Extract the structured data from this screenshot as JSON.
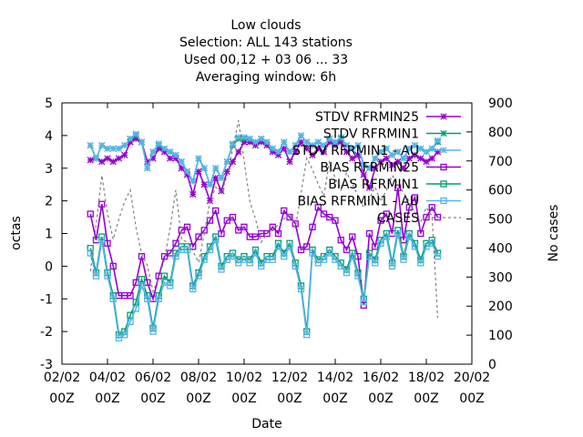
{
  "chart_data": {
    "type": "line",
    "title_lines": [
      "Low clouds",
      "Selection: ALL    143 stations",
      "Used  00,12  + 03 06 ... 33",
      "Averaging window:  6h"
    ],
    "xlabel": "Date",
    "ylabel": "octas",
    "y2label": "No cases",
    "x_ticks": [
      {
        "line1": "02/02",
        "line2": "00Z"
      },
      {
        "line1": "04/02",
        "line2": "00Z"
      },
      {
        "line1": "06/02",
        "line2": "00Z"
      },
      {
        "line1": "08/02",
        "line2": "00Z"
      },
      {
        "line1": "10/02",
        "line2": "00Z"
      },
      {
        "line1": "12/02",
        "line2": "00Z"
      },
      {
        "line1": "14/02",
        "line2": "00Z"
      },
      {
        "line1": "16/02",
        "line2": "00Z"
      },
      {
        "line1": "18/02",
        "line2": "00Z"
      },
      {
        "line1": "20/02",
        "line2": "00Z"
      }
    ],
    "x_unit": "days since 02/02 00Z",
    "xlim": [
      0,
      18
    ],
    "ylim": [
      -3,
      5
    ],
    "y2lim": [
      0,
      900
    ],
    "y_ticks": [
      "-3",
      "-2",
      "-1",
      "0",
      "1",
      "2",
      "3",
      "4",
      "5"
    ],
    "y2_ticks": [
      "0",
      "100",
      "200",
      "300",
      "400",
      "500",
      "600",
      "700",
      "800",
      "900"
    ],
    "grid": false,
    "legend_position": "top-right",
    "x": [
      1.25,
      1.5,
      1.75,
      2.0,
      2.25,
      2.5,
      2.75,
      3.0,
      3.25,
      3.5,
      3.75,
      4.0,
      4.25,
      4.5,
      4.75,
      5.0,
      5.25,
      5.5,
      5.75,
      6.0,
      6.25,
      6.5,
      6.75,
      7.0,
      7.25,
      7.5,
      7.75,
      8.0,
      8.25,
      8.5,
      8.75,
      9.0,
      9.25,
      9.5,
      9.75,
      10.0,
      10.25,
      10.5,
      10.75,
      11.0,
      11.25,
      11.5,
      11.75,
      12.0,
      12.25,
      12.5,
      12.75,
      13.0,
      13.25,
      13.5,
      13.75,
      14.0,
      14.25,
      14.5,
      14.75,
      15.0,
      15.25,
      15.5,
      15.75,
      16.0,
      16.25,
      16.5
    ],
    "series": [
      {
        "name": "STDV RFRMIN25",
        "color": "#9400d3",
        "marker": "star",
        "axis": "y1",
        "dash": false,
        "values": [
          3.25,
          3.3,
          3.2,
          3.3,
          3.2,
          3.3,
          3.4,
          3.8,
          3.9,
          3.8,
          3.2,
          3.3,
          3.6,
          3.5,
          3.3,
          3.3,
          3.0,
          2.8,
          2.2,
          2.9,
          2.5,
          2.0,
          2.7,
          2.3,
          2.9,
          3.2,
          3.5,
          3.8,
          3.8,
          3.7,
          3.8,
          3.7,
          3.5,
          3.4,
          3.6,
          3.2,
          3.5,
          3.8,
          3.6,
          3.4,
          3.6,
          3.5,
          3.8,
          3.7,
          3.8,
          3.5,
          3.3,
          3.4,
          2.8,
          2.4,
          3.0,
          3.2,
          3.3,
          3.1,
          3.2,
          3.0,
          3.3,
          3.4,
          3.3,
          3.2,
          3.3,
          3.5
        ]
      },
      {
        "name": "STDV RFRMIN1",
        "color": "#009e73",
        "marker": "star",
        "axis": "y1",
        "dash": false,
        "values": [
          3.7,
          3.3,
          3.7,
          3.6,
          3.6,
          3.6,
          3.7,
          3.9,
          4.0,
          3.8,
          3.0,
          3.5,
          3.7,
          3.6,
          3.5,
          3.4,
          3.2,
          2.9,
          2.6,
          3.3,
          3.0,
          2.5,
          3.0,
          2.7,
          3.2,
          3.7,
          3.9,
          3.9,
          3.9,
          3.8,
          3.9,
          3.8,
          3.6,
          3.5,
          3.8,
          3.5,
          3.7,
          4.0,
          3.8,
          3.7,
          3.8,
          3.7,
          3.9,
          3.8,
          3.9,
          3.7,
          3.6,
          3.7,
          3.1,
          3.0,
          3.3,
          3.5,
          3.6,
          3.4,
          3.5,
          3.3,
          3.6,
          3.7,
          3.6,
          3.5,
          3.6,
          3.8
        ]
      },
      {
        "name": "STDV RFRMIN1 - AU",
        "color": "#56b4e9",
        "marker": "star",
        "axis": "y1",
        "dash": false,
        "values": [
          3.7,
          3.3,
          3.7,
          3.6,
          3.6,
          3.6,
          3.7,
          3.9,
          4.05,
          3.8,
          3.0,
          3.5,
          3.75,
          3.6,
          3.5,
          3.4,
          3.2,
          2.9,
          2.6,
          3.3,
          3.0,
          2.5,
          3.0,
          2.7,
          3.2,
          3.75,
          3.95,
          3.95,
          3.9,
          3.8,
          3.9,
          3.8,
          3.6,
          3.5,
          3.8,
          3.5,
          3.7,
          4.0,
          3.8,
          3.7,
          3.8,
          3.7,
          3.9,
          3.8,
          3.95,
          3.7,
          3.6,
          3.7,
          3.1,
          3.0,
          3.3,
          3.5,
          3.6,
          3.4,
          3.5,
          3.3,
          3.6,
          3.7,
          3.6,
          3.5,
          3.6,
          3.85
        ]
      },
      {
        "name": "BIAS RFRMIN25",
        "color": "#9400d3",
        "marker": "square",
        "axis": "y1",
        "dash": false,
        "values": [
          1.6,
          0.8,
          1.9,
          0.7,
          0.0,
          -0.9,
          -0.9,
          -0.9,
          -0.5,
          0.3,
          -0.5,
          -1.0,
          -0.3,
          0.3,
          0.4,
          0.7,
          1.1,
          1.2,
          0.6,
          0.9,
          1.1,
          1.4,
          1.7,
          1.0,
          1.4,
          1.5,
          1.1,
          1.2,
          0.9,
          0.9,
          1.0,
          1.0,
          1.2,
          1.0,
          1.7,
          1.5,
          1.3,
          0.5,
          0.6,
          1.2,
          1.8,
          1.6,
          1.5,
          1.4,
          0.8,
          0.5,
          0.9,
          0.3,
          -1.2,
          1.0,
          0.6,
          1.4,
          1.6,
          1.0,
          2.4,
          0.8,
          1.8,
          2.1,
          1.0,
          1.5,
          1.8,
          1.5
        ]
      },
      {
        "name": "BIAS RFRMIN1",
        "color": "#009e73",
        "marker": "square",
        "axis": "y1",
        "dash": false,
        "values": [
          0.55,
          -0.2,
          0.9,
          -0.2,
          -0.9,
          -2.1,
          -2.0,
          -1.5,
          -1.1,
          -0.4,
          -0.9,
          -1.9,
          -0.9,
          -0.3,
          -0.5,
          0.4,
          0.6,
          0.6,
          -0.6,
          -0.2,
          0.3,
          0.6,
          0.9,
          0.0,
          0.3,
          0.4,
          0.2,
          0.3,
          0.2,
          0.5,
          0.1,
          0.3,
          0.3,
          0.7,
          0.4,
          0.7,
          0.1,
          -0.6,
          -2.0,
          0.5,
          0.2,
          0.3,
          0.5,
          0.3,
          0.1,
          -0.1,
          0.4,
          -0.2,
          -1.0,
          0.4,
          0.2,
          0.8,
          1.0,
          0.1,
          1.1,
          0.3,
          1.0,
          0.7,
          0.2,
          0.7,
          0.8,
          0.4
        ]
      },
      {
        "name": "BIAS RFRMIN1 - AU",
        "color": "#56b4e9",
        "marker": "square",
        "axis": "y1",
        "dash": false,
        "values": [
          0.4,
          -0.3,
          0.8,
          -0.3,
          -1.0,
          -2.2,
          -2.1,
          -1.7,
          -1.3,
          -0.6,
          -1.0,
          -2.0,
          -1.0,
          -0.5,
          -0.6,
          0.3,
          0.5,
          0.5,
          -0.7,
          -0.3,
          0.2,
          0.5,
          0.8,
          -0.1,
          0.2,
          0.3,
          0.1,
          0.2,
          0.1,
          0.4,
          0.0,
          0.2,
          0.2,
          0.6,
          0.3,
          0.6,
          0.0,
          -0.7,
          -2.1,
          0.4,
          0.1,
          0.2,
          0.4,
          0.2,
          0.0,
          -0.2,
          0.3,
          -0.3,
          -1.1,
          0.3,
          0.1,
          0.7,
          0.9,
          0.0,
          1.0,
          0.2,
          0.9,
          0.6,
          0.1,
          0.6,
          0.7,
          0.3
        ]
      },
      {
        "name": "CASES",
        "color": "#808080",
        "marker": "none",
        "axis": "y2",
        "dash": true,
        "values": [
          320,
          480,
          650,
          520,
          430,
          500,
          560,
          600,
          470,
          380,
          340,
          250,
          300,
          360,
          470,
          600,
          430,
          420,
          390,
          350,
          450,
          560,
          610,
          590,
          650,
          740,
          840,
          700,
          560,
          500,
          420,
          450,
          460,
          480,
          500,
          520,
          470,
          590,
          710,
          670,
          620,
          580,
          700,
          640,
          600,
          660,
          620,
          580,
          540,
          570,
          610,
          560,
          600,
          650,
          620,
          590,
          560,
          520,
          490,
          540,
          510,
          160
        ]
      }
    ]
  }
}
